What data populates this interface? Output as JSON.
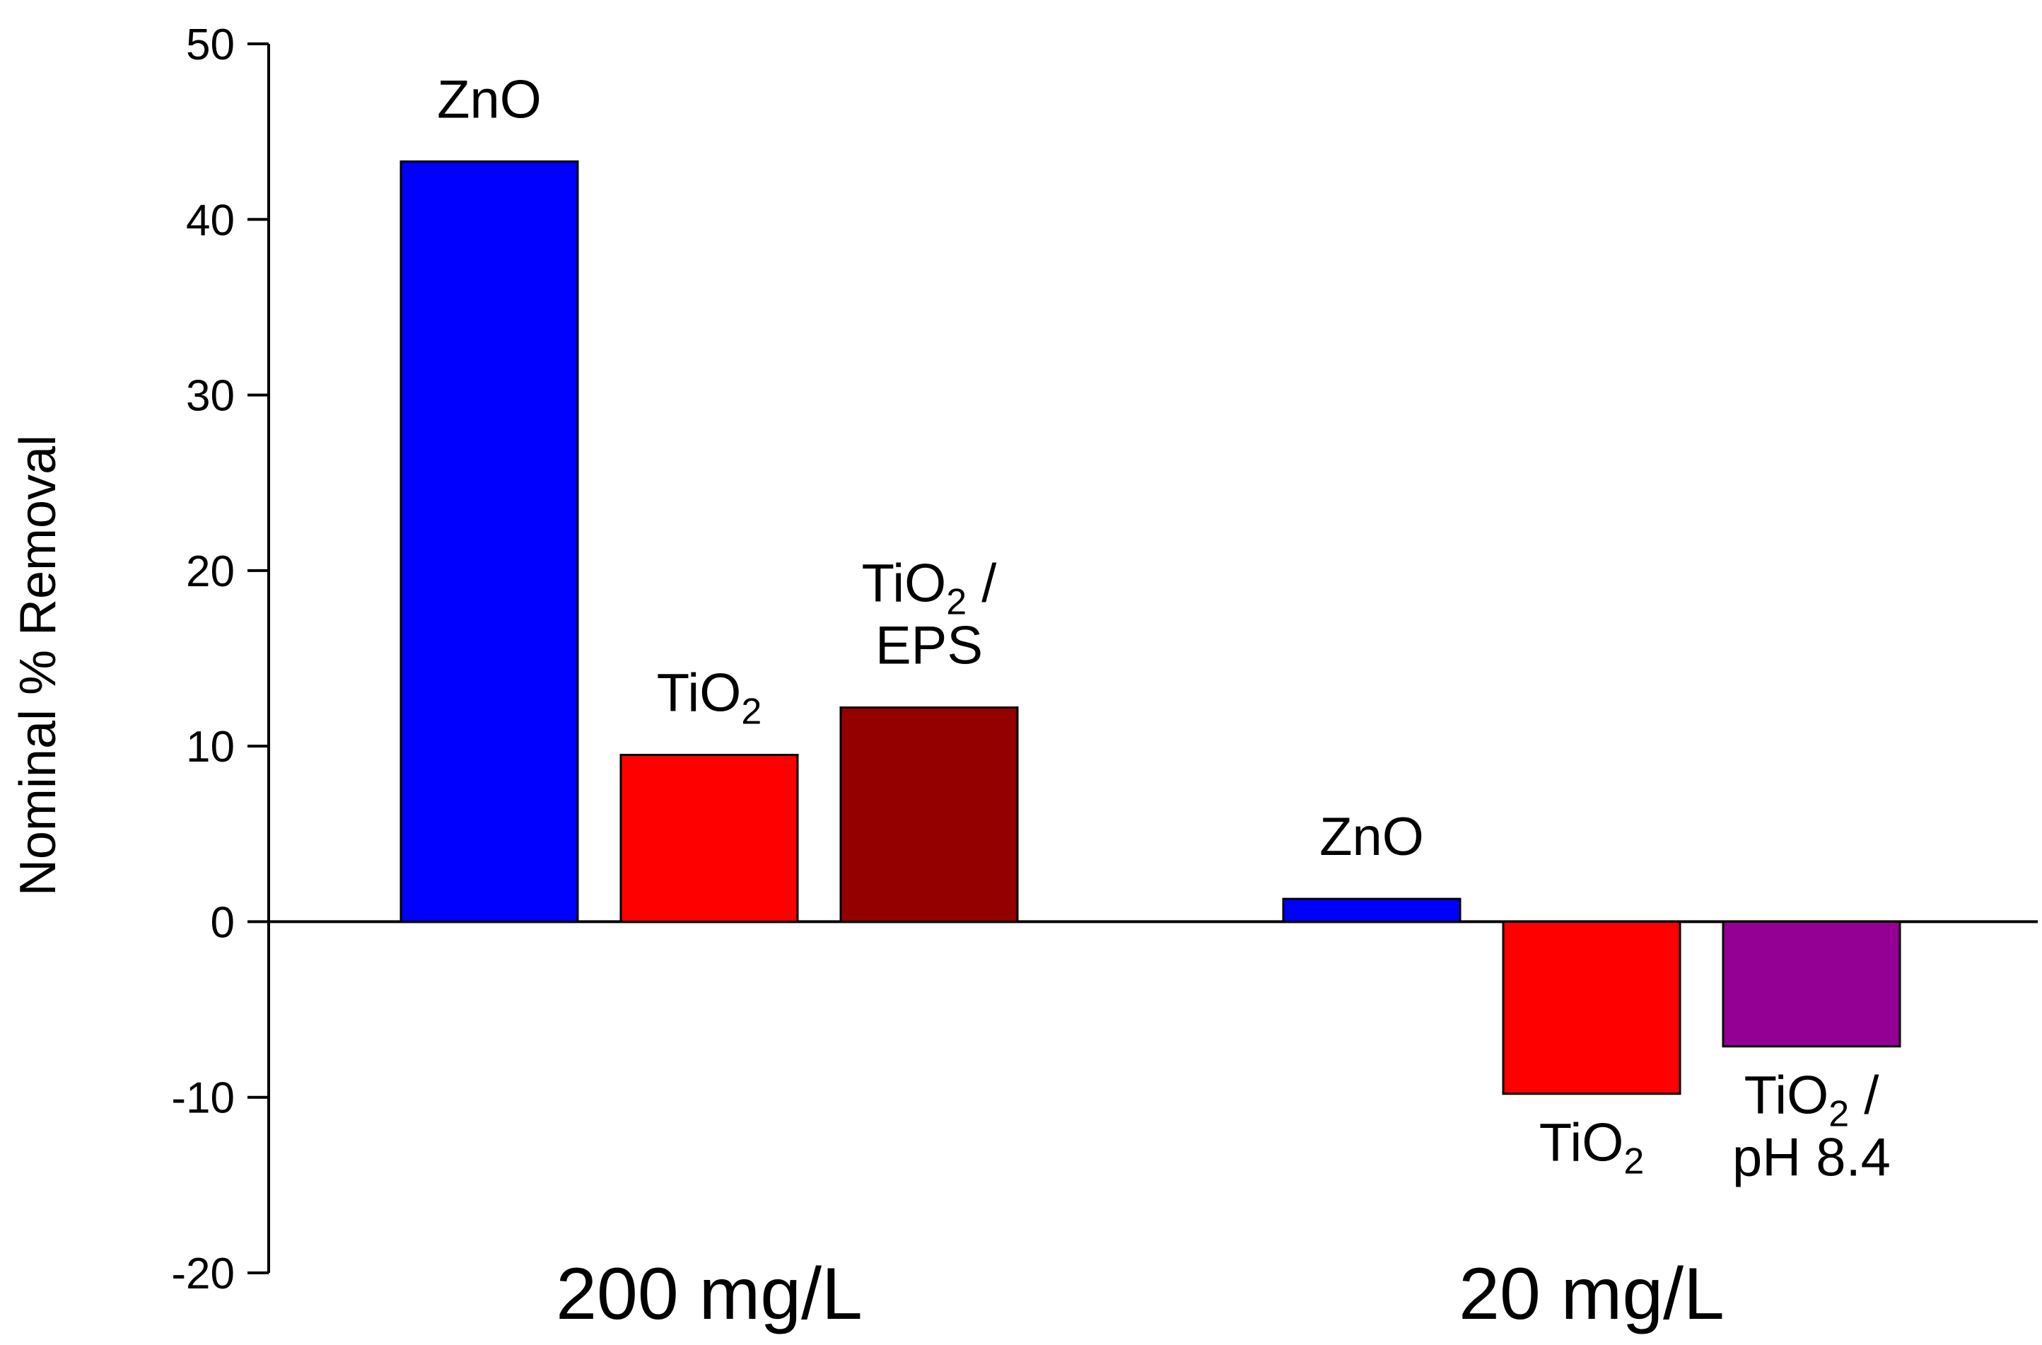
{
  "chart_data": {
    "type": "bar",
    "title": "",
    "xlabel": "",
    "ylabel": "Nominal % Removal",
    "ylim": [
      -20,
      50
    ],
    "yticks": [
      -20,
      -10,
      0,
      10,
      20,
      30,
      40,
      50
    ],
    "grid": false,
    "groups": [
      {
        "label": "200 mg/L",
        "bars": [
          {
            "label_lines": [
              {
                "main": "ZnO",
                "sub": "",
                "tail": ""
              }
            ],
            "value": 43.3,
            "color": "#0000ff"
          },
          {
            "label_lines": [
              {
                "main": "TiO",
                "sub": "2",
                "tail": ""
              }
            ],
            "value": 9.5,
            "color": "#ff0000"
          },
          {
            "label_lines": [
              {
                "main": "TiO",
                "sub": "2",
                "tail": " /"
              },
              {
                "main": "EPS",
                "sub": "",
                "tail": ""
              }
            ],
            "value": 12.2,
            "color": "#940000"
          }
        ]
      },
      {
        "label": "20 mg/L",
        "bars": [
          {
            "label_lines": [
              {
                "main": "ZnO",
                "sub": "",
                "tail": ""
              }
            ],
            "value": 1.3,
            "color": "#0000ff"
          },
          {
            "label_lines": [
              {
                "main": "TiO",
                "sub": "2",
                "tail": ""
              }
            ],
            "value": -9.8,
            "color": "#ff0000"
          },
          {
            "label_lines": [
              {
                "main": "TiO",
                "sub": "2",
                "tail": " /"
              },
              {
                "main": "pH 8.4",
                "sub": "",
                "tail": ""
              }
            ],
            "value": -7.1,
            "color": "#940094"
          }
        ]
      }
    ]
  }
}
